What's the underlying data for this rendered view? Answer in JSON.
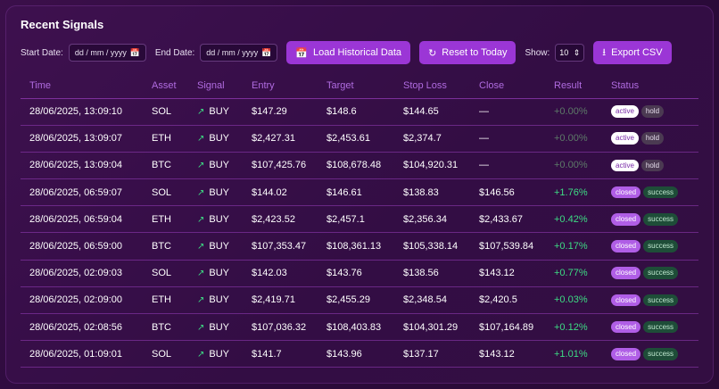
{
  "title": "Recent Signals",
  "controls": {
    "start_label": "Start Date:",
    "start_value": "dd / mm / yyyy",
    "end_label": "End Date:",
    "end_value": "dd / mm / yyyy",
    "load_label": "Load Historical Data",
    "reset_label": "Reset to Today",
    "show_label": "Show:",
    "show_value": "10",
    "export_label": "Export CSV"
  },
  "columns": [
    "Time",
    "Asset",
    "Signal",
    "Entry",
    "Target",
    "Stop Loss",
    "Close",
    "Result",
    "Status"
  ],
  "rows": [
    {
      "time": "28/06/2025, 13:09:10",
      "asset": "SOL",
      "signal": "BUY",
      "entry": "$147.29",
      "target": "$148.6",
      "stop": "$144.65",
      "close": "—",
      "result": "+0.00%",
      "result_kind": "neutral",
      "status": "active",
      "outcome": "hold"
    },
    {
      "time": "28/06/2025, 13:09:07",
      "asset": "ETH",
      "signal": "BUY",
      "entry": "$2,427.31",
      "target": "$2,453.61",
      "stop": "$2,374.7",
      "close": "—",
      "result": "+0.00%",
      "result_kind": "neutral",
      "status": "active",
      "outcome": "hold"
    },
    {
      "time": "28/06/2025, 13:09:04",
      "asset": "BTC",
      "signal": "BUY",
      "entry": "$107,425.76",
      "target": "$108,678.48",
      "stop": "$104,920.31",
      "close": "—",
      "result": "+0.00%",
      "result_kind": "neutral",
      "status": "active",
      "outcome": "hold"
    },
    {
      "time": "28/06/2025, 06:59:07",
      "asset": "SOL",
      "signal": "BUY",
      "entry": "$144.02",
      "target": "$146.61",
      "stop": "$138.83",
      "close": "$146.56",
      "result": "+1.76%",
      "result_kind": "pos",
      "status": "closed",
      "outcome": "success"
    },
    {
      "time": "28/06/2025, 06:59:04",
      "asset": "ETH",
      "signal": "BUY",
      "entry": "$2,423.52",
      "target": "$2,457.1",
      "stop": "$2,356.34",
      "close": "$2,433.67",
      "result": "+0.42%",
      "result_kind": "pos",
      "status": "closed",
      "outcome": "success"
    },
    {
      "time": "28/06/2025, 06:59:00",
      "asset": "BTC",
      "signal": "BUY",
      "entry": "$107,353.47",
      "target": "$108,361.13",
      "stop": "$105,338.14",
      "close": "$107,539.84",
      "result": "+0.17%",
      "result_kind": "pos",
      "status": "closed",
      "outcome": "success"
    },
    {
      "time": "28/06/2025, 02:09:03",
      "asset": "SOL",
      "signal": "BUY",
      "entry": "$142.03",
      "target": "$143.76",
      "stop": "$138.56",
      "close": "$143.12",
      "result": "+0.77%",
      "result_kind": "pos",
      "status": "closed",
      "outcome": "success"
    },
    {
      "time": "28/06/2025, 02:09:00",
      "asset": "ETH",
      "signal": "BUY",
      "entry": "$2,419.71",
      "target": "$2,455.29",
      "stop": "$2,348.54",
      "close": "$2,420.5",
      "result": "+0.03%",
      "result_kind": "pos",
      "status": "closed",
      "outcome": "success"
    },
    {
      "time": "28/06/2025, 02:08:56",
      "asset": "BTC",
      "signal": "BUY",
      "entry": "$107,036.32",
      "target": "$108,403.83",
      "stop": "$104,301.29",
      "close": "$107,164.89",
      "result": "+0.12%",
      "result_kind": "pos",
      "status": "closed",
      "outcome": "success"
    },
    {
      "time": "28/06/2025, 01:09:01",
      "asset": "SOL",
      "signal": "BUY",
      "entry": "$141.7",
      "target": "$143.96",
      "stop": "$137.17",
      "close": "$143.12",
      "result": "+1.01%",
      "result_kind": "pos",
      "status": "closed",
      "outcome": "success"
    }
  ],
  "icons": {
    "calendar": "calendar-icon",
    "load": "calendar-icon",
    "reset": "refresh-icon",
    "export": "download-icon",
    "signal": "trend-up-icon",
    "select": "chevron-updown-icon"
  },
  "colors": {
    "accent": "#9b36d6",
    "header_text": "#b06be0",
    "positive": "#3ddc84",
    "neutral_result": "#5d7a68"
  }
}
